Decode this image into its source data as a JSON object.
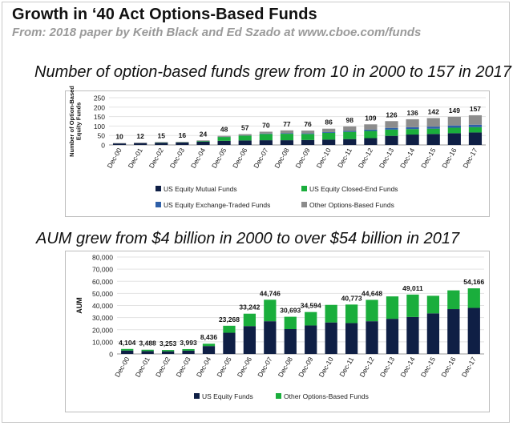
{
  "page": {
    "title": "Growth in ‘40 Act Options-Based Funds",
    "subtitle": "From: 2018 paper by Keith Black and Ed Szado at www.cboe.com/funds",
    "heading1": "Number of option-based funds grew from 10 in 2000 to 157 in 2017",
    "heading2": "AUM grew from $4 billion in 2000 to over $54 billion in 2017"
  },
  "chart_data": [
    {
      "type": "bar",
      "stacked": true,
      "title": "Number of option-based funds grew from 10 in 2000 to 157 in 2017",
      "ylabel": "Number of Option-Based Equity Funds",
      "ylim": [
        0,
        250
      ],
      "yticks": [
        "0",
        "50",
        "100",
        "150",
        "200",
        "250"
      ],
      "categories": [
        "Dec-00",
        "Dec-01",
        "Dec-02",
        "Dec-03",
        "Dec-04",
        "Dec-05",
        "Dec-06",
        "Dec-07",
        "Dec-08",
        "Dec-09",
        "Dec-10",
        "Dec-11",
        "Dec-12",
        "Dec-13",
        "Dec-14",
        "Dec-15",
        "Dec-16",
        "Dec-17"
      ],
      "totals": [
        10,
        12,
        15,
        16,
        24,
        48,
        57,
        70,
        77,
        76,
        86,
        98,
        109,
        126,
        136,
        142,
        149,
        157
      ],
      "total_labels": [
        "10",
        "12",
        "15",
        "16",
        "24",
        "48",
        "57",
        "70",
        "77",
        "76",
        "86",
        "98",
        "109",
        "126",
        "136",
        "142",
        "149",
        "157"
      ],
      "series": [
        {
          "name": "US Equity Mutual Funds",
          "color": "#0f1f45",
          "values": [
            8,
            10,
            12,
            13,
            18,
            22,
            24,
            25,
            25,
            26,
            28,
            31,
            36,
            48,
            55,
            58,
            62,
            66
          ]
        },
        {
          "name": "US Equity Closed-End Funds",
          "color": "#1aae3c",
          "values": [
            0,
            0,
            1,
            1,
            3,
            20,
            25,
            33,
            34,
            32,
            36,
            38,
            38,
            33,
            29,
            28,
            29,
            28
          ]
        },
        {
          "name": "US Equity Exchange-Traded Funds",
          "color": "#2e5fa8",
          "values": [
            0,
            0,
            0,
            0,
            0,
            1,
            1,
            2,
            3,
            3,
            4,
            5,
            7,
            9,
            10,
            11,
            12,
            13
          ]
        },
        {
          "name": "Other Options-Based Funds",
          "color": "#8c8c8c",
          "values": [
            2,
            2,
            2,
            2,
            3,
            5,
            7,
            10,
            15,
            15,
            18,
            24,
            28,
            36,
            42,
            45,
            46,
            50
          ]
        }
      ]
    },
    {
      "type": "bar",
      "stacked": true,
      "title": "AUM grew from $4 billion in 2000 to over $54 billion in 2017",
      "ylabel": "AUM",
      "ylim": [
        0,
        80000
      ],
      "yticks": [
        "0",
        "10,000",
        "20,000",
        "30,000",
        "40,000",
        "50,000",
        "60,000",
        "70,000",
        "80,000"
      ],
      "categories": [
        "Dec-00",
        "Dec-01",
        "Dec-02",
        "Dec-03",
        "Dec-04",
        "Dec-05",
        "Dec-06",
        "Dec-07",
        "Dec-08",
        "Dec-09",
        "Dec-10",
        "Dec-11",
        "Dec-12",
        "Dec-13",
        "Dec-14",
        "Dec-15",
        "Dec-16",
        "Dec-17"
      ],
      "totals": [
        4104,
        3488,
        3253,
        3993,
        8436,
        23268,
        33242,
        44746,
        30693,
        34594,
        40500,
        40773,
        44648,
        47500,
        49011,
        48000,
        52500,
        54166
      ],
      "total_labels": [
        "4,104",
        "3,488",
        "3,253",
        "3,993",
        "8,436",
        "23,268",
        "33,242",
        "44,746",
        "30,693",
        "34,594",
        "",
        "40,773",
        "44,648",
        "",
        "49,011",
        "",
        "",
        "54,166"
      ],
      "series": [
        {
          "name": "US Equity Funds",
          "color": "#0f1f45",
          "values": [
            2800,
            2400,
            2200,
            2700,
            6500,
            17500,
            23000,
            27000,
            20500,
            23500,
            26000,
            25500,
            27000,
            29000,
            30500,
            33500,
            37000,
            38000
          ]
        },
        {
          "name": "Other Options-Based Funds",
          "color": "#1aae3c",
          "values": [
            1304,
            1088,
            1053,
            1293,
            1936,
            5768,
            10242,
            17746,
            10193,
            11094,
            14500,
            15273,
            17648,
            18500,
            18511,
            14500,
            15500,
            16166
          ]
        }
      ]
    }
  ]
}
